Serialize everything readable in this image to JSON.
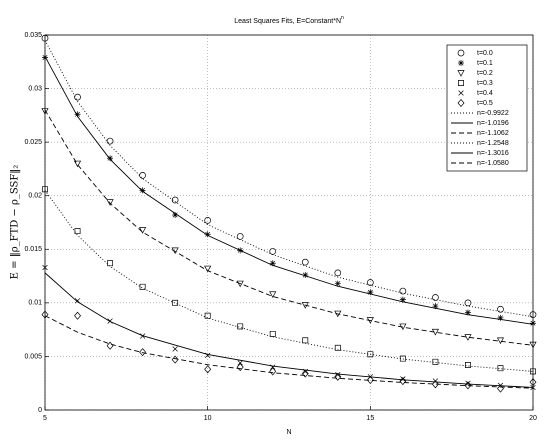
{
  "chart_data": {
    "type": "scatter",
    "title": "Least Squares Fits, E=Constant*N",
    "title_exponent": "n",
    "xlabel": "N",
    "ylabel": "E = ‖ρ_FTD − ρ_SSF‖₂",
    "x": [
      5,
      6,
      7,
      8,
      9,
      10,
      11,
      12,
      13,
      14,
      15,
      16,
      17,
      18,
      19,
      20
    ],
    "xlim": [
      5,
      20
    ],
    "xticks": [
      5,
      10,
      15,
      20
    ],
    "ylim": [
      0,
      0.035
    ],
    "yticks": [
      0,
      0.005,
      0.01,
      0.015,
      0.02,
      0.025,
      0.03,
      0.035
    ],
    "grid": true,
    "legend": "upper right",
    "series": [
      {
        "name": "t=0.0",
        "marker": "circle",
        "color": "#000000",
        "values": [
          0.0347,
          0.0292,
          0.0251,
          0.0219,
          0.0196,
          0.0177,
          0.0162,
          0.0148,
          0.0138,
          0.0128,
          0.0119,
          0.0111,
          0.0105,
          0.01,
          0.0094,
          0.0089
        ]
      },
      {
        "name": "t=0.1",
        "marker": "star",
        "color": "#000000",
        "values": [
          0.0329,
          0.0276,
          0.0235,
          0.0205,
          0.0182,
          0.0164,
          0.0149,
          0.0137,
          0.0126,
          0.0118,
          0.011,
          0.0103,
          0.0097,
          0.0091,
          0.0086,
          0.0081
        ]
      },
      {
        "name": "t=0.2",
        "marker": "triangle-down",
        "color": "#000000",
        "values": [
          0.0279,
          0.023,
          0.0194,
          0.0168,
          0.0149,
          0.0132,
          0.0118,
          0.0108,
          0.0098,
          0.009,
          0.0084,
          0.0078,
          0.0073,
          0.0068,
          0.0065,
          0.0061
        ]
      },
      {
        "name": "t=0.3",
        "marker": "square",
        "color": "#000000",
        "values": [
          0.0206,
          0.0167,
          0.0137,
          0.0115,
          0.01,
          0.0088,
          0.0078,
          0.0071,
          0.0065,
          0.0058,
          0.0052,
          0.0048,
          0.0045,
          0.0042,
          0.0039,
          0.0036
        ]
      },
      {
        "name": "t=0.4",
        "marker": "x",
        "color": "#000000",
        "values": [
          0.0133,
          0.0102,
          0.0083,
          0.0069,
          0.0057,
          0.0051,
          0.0044,
          0.004,
          0.0036,
          0.0033,
          0.0031,
          0.0029,
          0.0027,
          0.0025,
          0.0023,
          0.0021
        ]
      },
      {
        "name": "t=0.5",
        "marker": "diamond",
        "color": "#000000",
        "values": [
          0.0089,
          0.0088,
          0.006,
          0.0054,
          0.0047,
          0.0038,
          0.004,
          0.0036,
          0.0034,
          0.0031,
          0.0028,
          0.0027,
          0.0024,
          0.0023,
          0.002,
          0.0026
        ]
      }
    ],
    "fit_x": [
      5,
      6,
      7,
      8,
      10,
      12,
      14,
      16,
      18,
      20
    ],
    "fit_series": [
      {
        "name": "n=-0.9922",
        "dash": "dotted",
        "color": "#000000",
        "values": [
          0.0345,
          0.0288,
          0.0247,
          0.0216,
          0.0173,
          0.0145,
          0.0124,
          0.0109,
          0.0097,
          0.0087
        ]
      },
      {
        "name": "n=-1.0196",
        "dash": "solid",
        "color": "#000000",
        "values": [
          0.033,
          0.0274,
          0.0234,
          0.0204,
          0.0163,
          0.0135,
          0.01155,
          0.0101,
          0.0089,
          0.008
        ]
      },
      {
        "name": "n=-1.1062",
        "dash": "dashed",
        "color": "#000000",
        "values": [
          0.028,
          0.0229,
          0.0193,
          0.0166,
          0.013,
          0.0106,
          0.00897,
          0.00773,
          0.00679,
          0.00604
        ]
      },
      {
        "name": "n=-1.2548",
        "dash": "dotted",
        "color": "#000000",
        "values": [
          0.0205,
          0.0163,
          0.0134,
          0.01137,
          0.00859,
          0.00683,
          0.00563,
          0.00476,
          0.00411,
          0.0036
        ]
      },
      {
        "name": "n=-1.3016",
        "dash": "solid",
        "color": "#000000",
        "values": [
          0.0128,
          0.0101,
          0.00826,
          0.00694,
          0.00519,
          0.0041,
          0.00335,
          0.00282,
          0.00242,
          0.00211
        ]
      },
      {
        "name": "n=-1.0580",
        "dash": "dashed",
        "color": "#000000",
        "values": [
          0.0088,
          0.00726,
          0.00616,
          0.00535,
          0.00423,
          0.00348,
          0.00296,
          0.00257,
          0.00227,
          0.00203
        ]
      }
    ]
  }
}
